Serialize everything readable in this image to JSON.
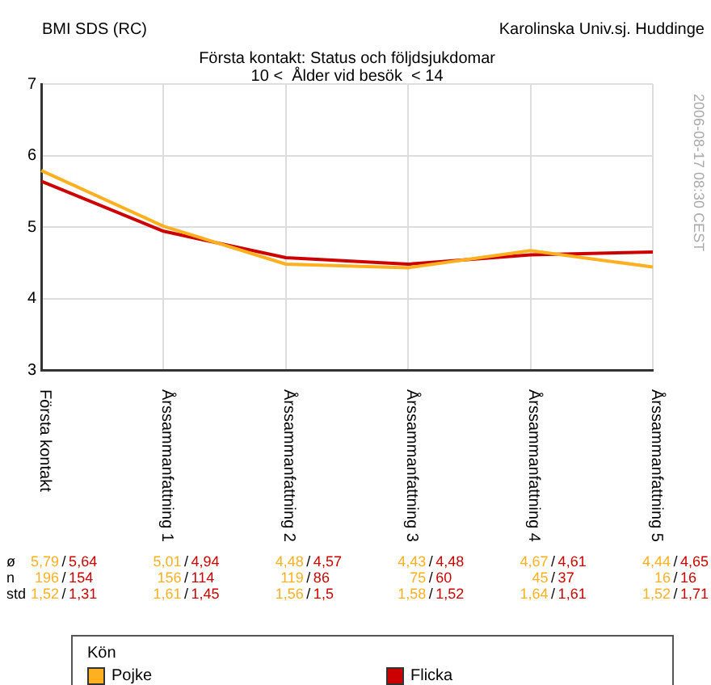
{
  "chart_data": {
    "type": "line",
    "title": "Första kontakt: Status och följdsjukdomar",
    "subtitle": "10 <  Ålder vid besök  < 14",
    "ylabel": "BMI SDS (RC)",
    "legend_title": "Kön",
    "categories": [
      "Första kontakt",
      "Årssammanfattning 1",
      "Årssammanfattning 2",
      "Årssammanfattning 3",
      "Årssammanfattning 4",
      "Årssammanfattning 5"
    ],
    "series": [
      {
        "name": "Pojke",
        "color": "#ffb020",
        "values": [
          5.79,
          5.01,
          4.48,
          4.43,
          4.67,
          4.44
        ]
      },
      {
        "name": "Flicka",
        "color": "#cc0000",
        "values": [
          5.64,
          4.94,
          4.57,
          4.48,
          4.61,
          4.65
        ]
      }
    ],
    "ylim": [
      3,
      7
    ],
    "yticks": [
      3,
      4,
      5,
      6,
      7
    ],
    "grid": true,
    "legend": "bottom",
    "marker": "none",
    "line_style": "solid",
    "annotations": [
      "Karolinska Univ.sj. Huddinge",
      "2006-08-17 08:30 CEST",
      "ø",
      "5,79",
      "/",
      "5,64",
      "5,01",
      "/",
      "4,94",
      "4,48",
      "/",
      "4,57",
      "4,43",
      "/",
      "4,48",
      "4,67",
      "/",
      "4,61",
      "4,44",
      "/",
      "4,65",
      "n",
      "196",
      "/",
      "154",
      "156",
      "/",
      "114",
      "119",
      "/",
      "86",
      "75",
      "/",
      "60",
      "45",
      "/",
      "37",
      "16",
      "/",
      "16",
      "std",
      "1,52",
      "/",
      "1,31",
      "1,61",
      "/",
      "1,45",
      "1,56",
      "/",
      "1,5",
      "1,58",
      "/",
      "1,52",
      "1,64",
      "/",
      "1,61",
      "1,52",
      "/",
      "1,71"
    ]
  }
}
